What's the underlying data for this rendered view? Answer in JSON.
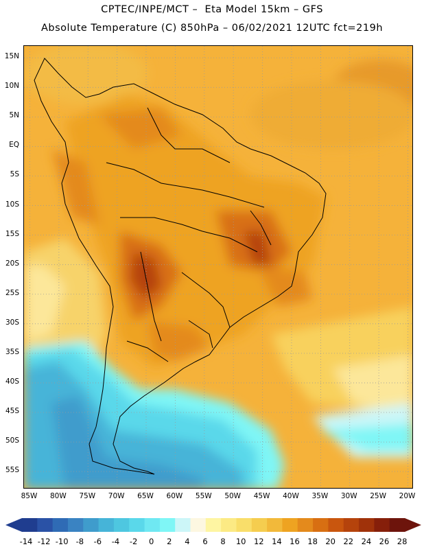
{
  "header": {
    "line1": "CPTEC/INPE/MCT –  Eta Model 15km – GFS",
    "line2": "Absolute Temperature (C) 850hPa – 06/02/2021 12UTC fct=219h"
  },
  "map": {
    "lon_range": [
      -86,
      -19
    ],
    "lat_range": [
      -58,
      17
    ],
    "lat_ticks": [
      "15N",
      "10N",
      "5N",
      "EQ",
      "5S",
      "10S",
      "15S",
      "20S",
      "25S",
      "30S",
      "35S",
      "40S",
      "45S",
      "50S",
      "55S"
    ],
    "lat_values": [
      15,
      10,
      5,
      0,
      -5,
      -10,
      -15,
      -20,
      -25,
      -30,
      -35,
      -40,
      -45,
      -50,
      -55
    ],
    "lon_ticks": [
      "85W",
      "80W",
      "75W",
      "70W",
      "65W",
      "60W",
      "55W",
      "50W",
      "45W",
      "40W",
      "35W",
      "30W",
      "25W",
      "20W"
    ],
    "lon_values": [
      -85,
      -80,
      -75,
      -70,
      -65,
      -60,
      -55,
      -50,
      -45,
      -40,
      -35,
      -30,
      -25,
      -20
    ],
    "gridlines": "dotted"
  },
  "colorbar": {
    "labels": [
      "-14",
      "-12",
      "-10",
      "-8",
      "-6",
      "-4",
      "-2",
      "0",
      "2",
      "4",
      "6",
      "8",
      "10",
      "12",
      "14",
      "16",
      "18",
      "20",
      "22",
      "24",
      "26",
      "28"
    ],
    "colors": [
      "#1f3d8f",
      "#2a52a6",
      "#2f6bb5",
      "#3a83c2",
      "#3f9ccc",
      "#46b4d8",
      "#4ec7e0",
      "#5ad8ea",
      "#6fe8f2",
      "#7ff6f6",
      "#ccf6f8",
      "#fdf7e1",
      "#fef5a2",
      "#fcea84",
      "#f9de6a",
      "#f5cd4f",
      "#f2b93a",
      "#eea321",
      "#e48a1c",
      "#d86f12",
      "#c9560e",
      "#b5430c",
      "#a0320a",
      "#861f0a",
      "#6d140c"
    ]
  }
}
